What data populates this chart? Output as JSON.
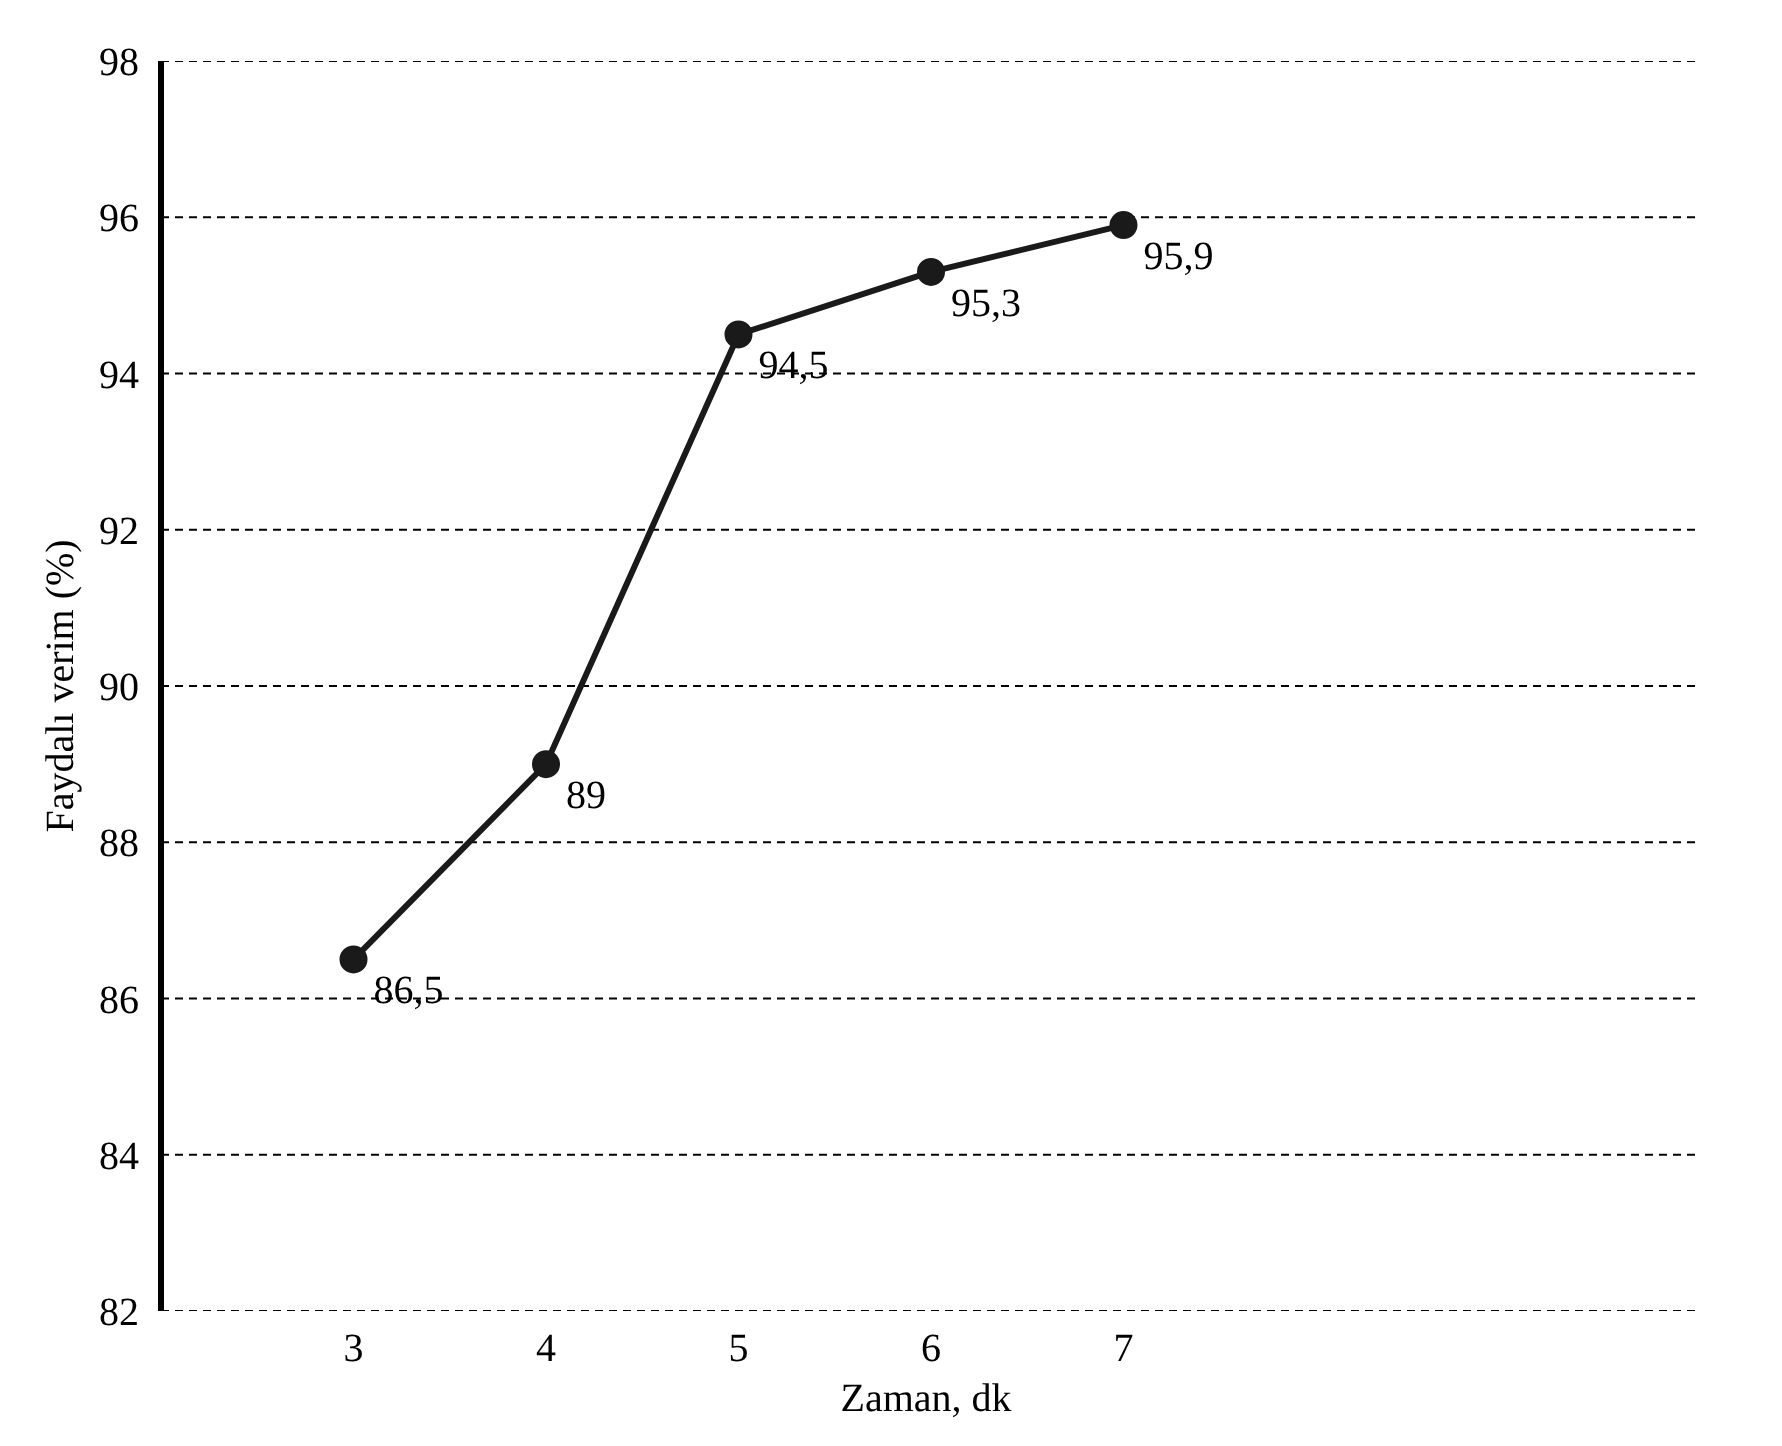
{
  "chart_data": {
    "type": "line",
    "xlabel": "Zaman,  dk",
    "ylabel": "Faydalı verim (%)",
    "x": [
      3,
      4,
      5,
      6,
      7
    ],
    "series": [
      {
        "color": "#1a1a1a",
        "values": [
          86.5,
          89,
          94.5,
          95.3,
          95.9
        ],
        "value_labels": [
          "86,5",
          "89",
          "94,5",
          "95,3",
          "95,9"
        ]
      }
    ],
    "xlim": [
      2,
      10
    ],
    "xticks": [
      3,
      4,
      5,
      6,
      7
    ],
    "ylim": [
      82,
      98
    ],
    "yticks": [
      82,
      84,
      86,
      88,
      90,
      92,
      94,
      96,
      98
    ],
    "grid": "y",
    "marker": "circle",
    "line_style": "solid"
  }
}
